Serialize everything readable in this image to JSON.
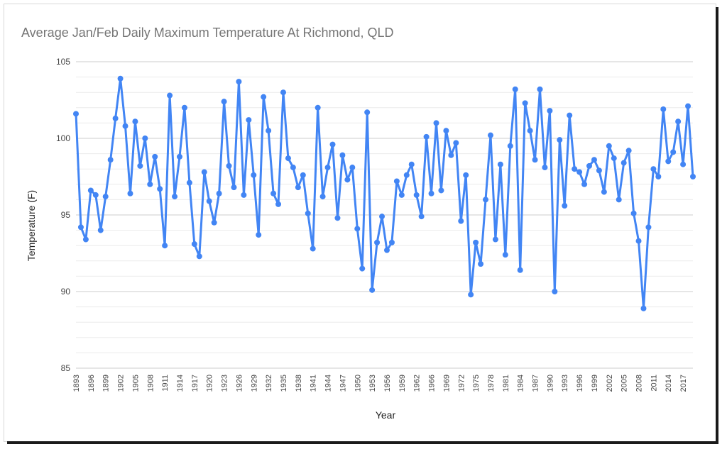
{
  "chart_data": {
    "type": "line",
    "title": "Average Jan/Feb Daily Maximum Temperature At Richmond, QLD",
    "xlabel": "Year",
    "ylabel": "Temperature (F)",
    "ylim": [
      85,
      105
    ],
    "yticks": [
      "85",
      "90",
      "95",
      "100",
      "105"
    ],
    "grid": true,
    "legend": "none",
    "color": "#4285f4",
    "x_tick_labels": [
      "1893",
      "1896",
      "1899",
      "1902",
      "1905",
      "1908",
      "1911",
      "1914",
      "1917",
      "1920",
      "1923",
      "1926",
      "1929",
      "1932",
      "1935",
      "1938",
      "1941",
      "1944",
      "1947",
      "1950",
      "1953",
      "1956",
      "1959",
      "1962",
      "1966",
      "1969",
      "1972",
      "1975",
      "1978",
      "1981",
      "1984",
      "1987",
      "1990",
      "1993",
      "1996",
      "1999",
      "2002",
      "2005",
      "2008",
      "2011",
      "2014",
      "2017"
    ],
    "series": [
      {
        "values": [
          101.6,
          94.2,
          93.4,
          96.6,
          96.3,
          94,
          96.2,
          98.6,
          101.3,
          103.9,
          100.8,
          96.4,
          101.1,
          98.2,
          100,
          97,
          98.8,
          96.7,
          93,
          102.8,
          96.2,
          98.8,
          102,
          97.1,
          93.1,
          92.3,
          97.8,
          95.9,
          94.5,
          96.4,
          102.4,
          98.2,
          96.8,
          103.7,
          96.3,
          101.2,
          97.6,
          93.7,
          102.7,
          100.5,
          96.4,
          95.7,
          103,
          98.7,
          98.1,
          96.8,
          97.6,
          95.1,
          92.8,
          102,
          96.2,
          98.1,
          99.6,
          94.8,
          98.9,
          97.3,
          98.1,
          94.1,
          91.5,
          101.7,
          90.1,
          93.2,
          94.9,
          92.7,
          93.2,
          97.2,
          96.3,
          97.6,
          98.3,
          96.3,
          94.9,
          100.1,
          96.4,
          101,
          96.6,
          100.5,
          98.9,
          99.7,
          94.6,
          97.6,
          89.8,
          93.2,
          91.8,
          96,
          100.2,
          93.4,
          98.3,
          92.4,
          99.5,
          103.2,
          91.4,
          102.3,
          100.5,
          98.6,
          103.2,
          98.1,
          101.8,
          90,
          99.9,
          95.6,
          101.5,
          98,
          97.8,
          97,
          98.2,
          98.6,
          97.9,
          96.5,
          99.5,
          98.7,
          96,
          98.4,
          99.2,
          95.1,
          93.3,
          88.9,
          94.2,
          98,
          97.5,
          101.9,
          98.5,
          99.1,
          101.1,
          98.3,
          102.1,
          97.5
        ]
      }
    ]
  }
}
